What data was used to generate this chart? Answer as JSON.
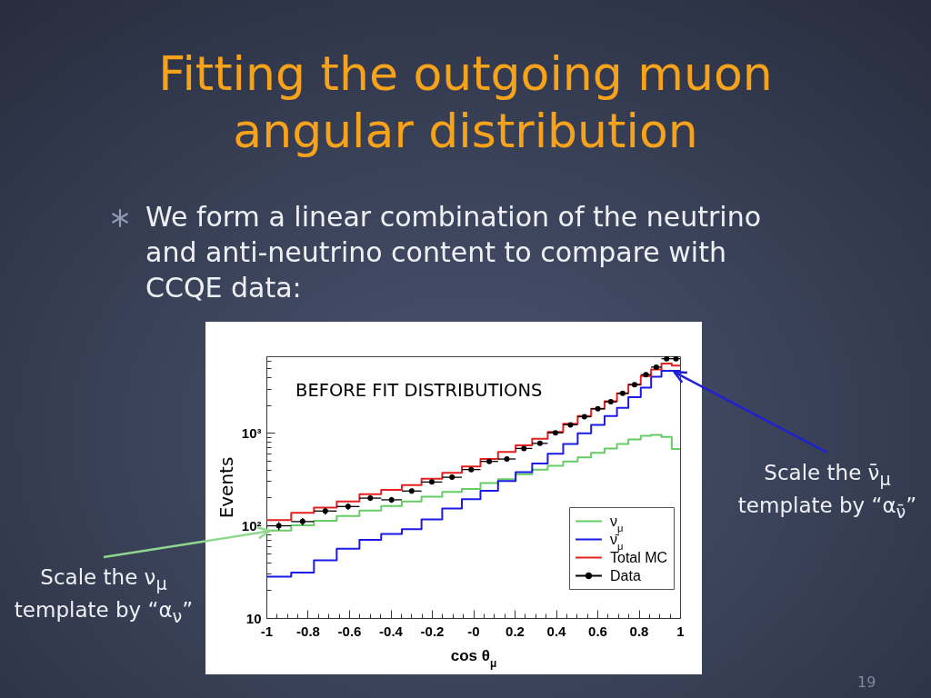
{
  "chart_data": {
    "type": "histogram",
    "title": "Fitting the outgoing muon angular distribution",
    "subtitle": "We form a linear combination of the neutrino and anti-neutrino content to compare with CCQE data:",
    "xlabel": "cos θ$_{μ}$",
    "ylabel": "Events",
    "bins": [
      -1,
      -0.88,
      -0.77,
      -0.66,
      -0.55,
      -0.445,
      -0.345,
      -0.25,
      -0.15,
      -0.055,
      0.035,
      0.12,
      0.205,
      0.285,
      0.36,
      0.435,
      0.505,
      0.57,
      0.635,
      0.695,
      0.75,
      0.81,
      0.86,
      0.91,
      0.96,
      1
    ],
    "series": [
      {
        "name": "ν$_{μ}$",
        "color": "#66cc66",
        "values": [
          88,
          100,
          112,
          126,
          145,
          162,
          181,
          204,
          230,
          247,
          286,
          316,
          358,
          401,
          439,
          491,
          542,
          606,
          678,
          759,
          849,
          929,
          950,
          900,
          667
        ]
      },
      {
        "name": "ν̄$_{μ}$",
        "color": "#1a1ae6",
        "values": [
          28,
          31,
          42,
          56,
          70,
          81,
          91,
          116,
          152,
          192,
          236,
          301,
          376,
          466,
          593,
          759,
          985,
          1220,
          1520,
          1860,
          2420,
          3080,
          4030,
          4680,
          4680
        ]
      },
      {
        "name": "Total MC",
        "color": "#e62020",
        "values": [
          114,
          137,
          156,
          181,
          217,
          242,
          273,
          319,
          370,
          433,
          521,
          620,
          730,
          860,
          1020,
          1250,
          1520,
          1820,
          2190,
          2670,
          3310,
          4090,
          4820,
          5600,
          5300
        ]
      },
      {
        "name": "Data",
        "type": "scatter",
        "color": "#000000",
        "marker": "circle",
        "x": [
          -0.94,
          -0.825,
          -0.715,
          -0.605,
          -0.4975,
          -0.395,
          -0.2975,
          -0.2,
          -0.1025,
          -0.01,
          0.0775,
          0.1625,
          0.245,
          0.3225,
          0.3975,
          0.47,
          0.5375,
          0.6025,
          0.665,
          0.7225,
          0.78,
          0.835,
          0.885,
          0.935,
          0.98
        ],
        "values": [
          99,
          110,
          143,
          160,
          197,
          189,
          235,
          294,
          331,
          401,
          491,
          521,
          678,
          769,
          1000,
          1220,
          1490,
          1820,
          2160,
          2670,
          3310,
          4240,
          5120,
          6310,
          6310
        ],
        "errors": [
          10,
          10,
          12,
          13,
          14,
          14,
          15,
          17,
          18,
          20,
          22,
          23,
          26,
          28,
          32,
          35,
          39,
          43,
          46,
          52,
          58,
          65,
          72,
          79,
          79
        ],
        "xerrors": [
          0.06,
          0.055,
          0.055,
          0.055,
          0.0525,
          0.05,
          0.0475,
          0.05,
          0.0475,
          0.045,
          0.0425,
          0.0425,
          0.04,
          0.0375,
          0.0375,
          0.035,
          0.0325,
          0.0325,
          0.03,
          0.0275,
          0.03,
          0.025,
          0.025,
          0.025,
          0.02
        ]
      }
    ],
    "xlim": [
      -1,
      1
    ],
    "xticks": [
      -1,
      {
        "value": -0.95,
        "label": null
      },
      {
        "value": -0.9,
        "label": null
      },
      {
        "value": -0.85,
        "label": null
      },
      -0.8,
      {
        "value": -0.75,
        "label": null
      },
      {
        "value": -0.7,
        "label": null
      },
      {
        "value": -0.65,
        "label": null
      },
      -0.6,
      {
        "value": -0.55,
        "label": null
      },
      {
        "value": -0.5,
        "label": null
      },
      {
        "value": -0.45,
        "label": null
      },
      -0.4,
      {
        "value": -0.35,
        "label": null
      },
      {
        "value": -0.3,
        "label": null
      },
      {
        "value": -0.25,
        "label": null
      },
      -0.2,
      {
        "value": -0.15,
        "label": null
      },
      {
        "value": -0.1,
        "label": null
      },
      {
        "value": -0.05,
        "label": null
      },
      {
        "value": 0,
        "label": "-0"
      },
      {
        "value": 0.05,
        "label": null
      },
      {
        "value": 0.1,
        "label": null
      },
      {
        "value": 0.15,
        "label": null
      },
      0.2,
      {
        "value": 0.25,
        "label": null
      },
      {
        "value": 0.3,
        "label": null
      },
      {
        "value": 0.35,
        "label": null
      },
      0.4,
      {
        "value": 0.45,
        "label": null
      },
      {
        "value": 0.5,
        "label": null
      },
      {
        "value": 0.55,
        "label": null
      },
      0.6,
      {
        "value": 0.65,
        "label": null
      },
      {
        "value": 0.7,
        "label": null
      },
      {
        "value": 0.75,
        "label": null
      },
      0.8,
      {
        "value": 0.85,
        "label": null
      },
      {
        "value": 0.9,
        "label": null
      },
      {
        "value": 0.95,
        "label": null
      },
      1
    ],
    "ylim": [
      10,
      6700
    ],
    "yticks": [
      10,
      {
        "value": 20,
        "label": null
      },
      {
        "value": 30,
        "label": null
      },
      {
        "value": 40,
        "label": null
      },
      {
        "value": 50,
        "label": null
      },
      {
        "value": 60,
        "label": null
      },
      {
        "value": 70,
        "label": null
      },
      {
        "value": 80,
        "label": null
      },
      {
        "value": 90,
        "label": null
      },
      {
        "value": 100,
        "label": "10²"
      },
      {
        "value": 200,
        "label": null
      },
      {
        "value": 300,
        "label": null
      },
      {
        "value": 400,
        "label": null
      },
      {
        "value": 500,
        "label": null
      },
      {
        "value": 600,
        "label": null
      },
      {
        "value": 700,
        "label": null
      },
      {
        "value": 800,
        "label": null
      },
      {
        "value": 900,
        "label": null
      },
      {
        "value": 1000,
        "label": "10³"
      },
      {
        "value": 2000,
        "label": null
      },
      {
        "value": 3000,
        "label": null
      },
      {
        "value": 4000,
        "label": null
      },
      {
        "value": 5000,
        "label": null
      },
      {
        "value": 6000,
        "label": null
      }
    ],
    "log": true,
    "legend": "bottom right",
    "annotations": [
      "BEFORE FIT DISTRIBUTIONS",
      {
        "text": "Scale the ν$_{μ}$ template by “α$_{ν}$”",
        "x": -0.97,
        "y": 88
      },
      {
        "text": "Scale the ν̄$_{μ}$ template by “α$_{ν̄}$”",
        "x": 0.96,
        "y": 4680
      },
      "19"
    ]
  }
}
